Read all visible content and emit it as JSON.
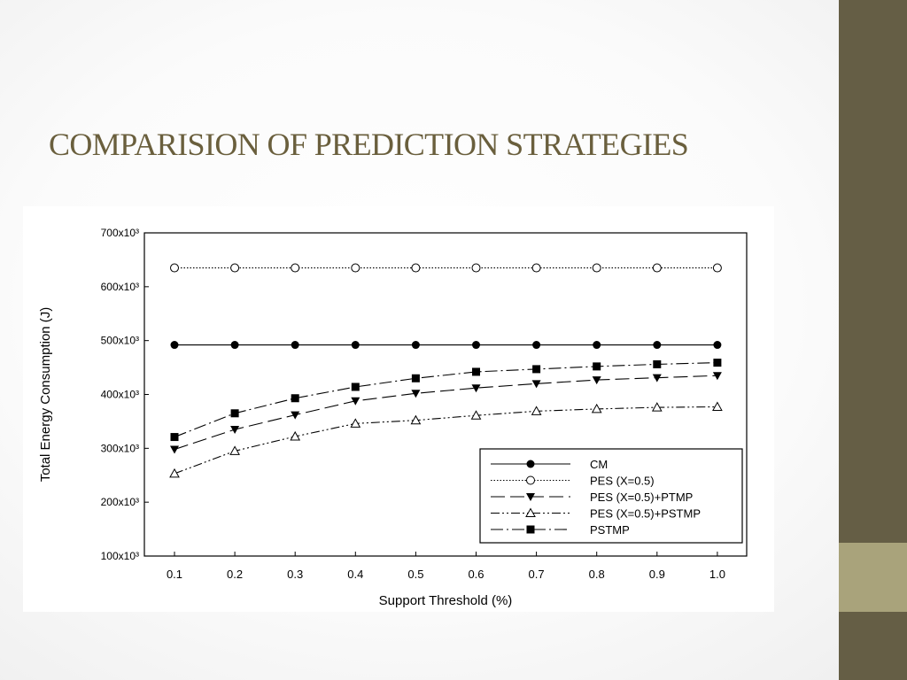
{
  "slide": {
    "title": "COMPARISION OF PREDICTION STRATEGIES",
    "title_color": "#6a5f3d",
    "sidebar_colors": {
      "top": "#655e45",
      "mid": "#a9a37b",
      "bottom": "#655e45"
    }
  },
  "chart_data": {
    "type": "line",
    "title": "",
    "xlabel": "Support Threshold (%)",
    "ylabel": "Total Energy Consumption (J)",
    "x": [
      0.1,
      0.2,
      0.3,
      0.4,
      0.5,
      0.6,
      0.7,
      0.8,
      0.9,
      1.0
    ],
    "x_tick_labels": [
      "0.1",
      "0.2",
      "0.3",
      "0.4",
      "0.5",
      "0.6",
      "0.7",
      "0.8",
      "0.9",
      "1.0"
    ],
    "ylim": [
      100000,
      700000
    ],
    "y_ticks": [
      100000,
      200000,
      300000,
      400000,
      500000,
      600000,
      700000
    ],
    "y_tick_labels": [
      "100x10³",
      "200x10³",
      "300x10³",
      "400x10³",
      "500x10³",
      "600x10³",
      "700x10³"
    ],
    "grid": false,
    "legend_position": "bottom-right",
    "series": [
      {
        "name": "CM",
        "marker": "filled-circle",
        "dash": "solid",
        "values": [
          492000,
          492000,
          492000,
          492000,
          492000,
          492000,
          492000,
          492000,
          492000,
          492000
        ]
      },
      {
        "name": "PES (X=0.5)",
        "marker": "open-circle",
        "dash": "dotted",
        "values": [
          635000,
          635000,
          635000,
          635000,
          635000,
          635000,
          635000,
          635000,
          635000,
          635000
        ]
      },
      {
        "name": "PES (X=0.5)+PTMP",
        "marker": "filled-triangle-down",
        "dash": "long-dash",
        "values": [
          298000,
          335000,
          362000,
          388000,
          402000,
          412000,
          420000,
          427000,
          431000,
          435000
        ]
      },
      {
        "name": "PES (X=0.5)+PSTMP",
        "marker": "open-triangle-up",
        "dash": "dash-dot-dot",
        "values": [
          253000,
          295000,
          322000,
          346000,
          352000,
          361000,
          369000,
          373000,
          376000,
          377000
        ]
      },
      {
        "name": "PSTMP",
        "marker": "filled-square",
        "dash": "dash-dot",
        "values": [
          321000,
          365000,
          393000,
          414000,
          430000,
          442000,
          447000,
          452000,
          456000,
          459000
        ]
      }
    ]
  }
}
